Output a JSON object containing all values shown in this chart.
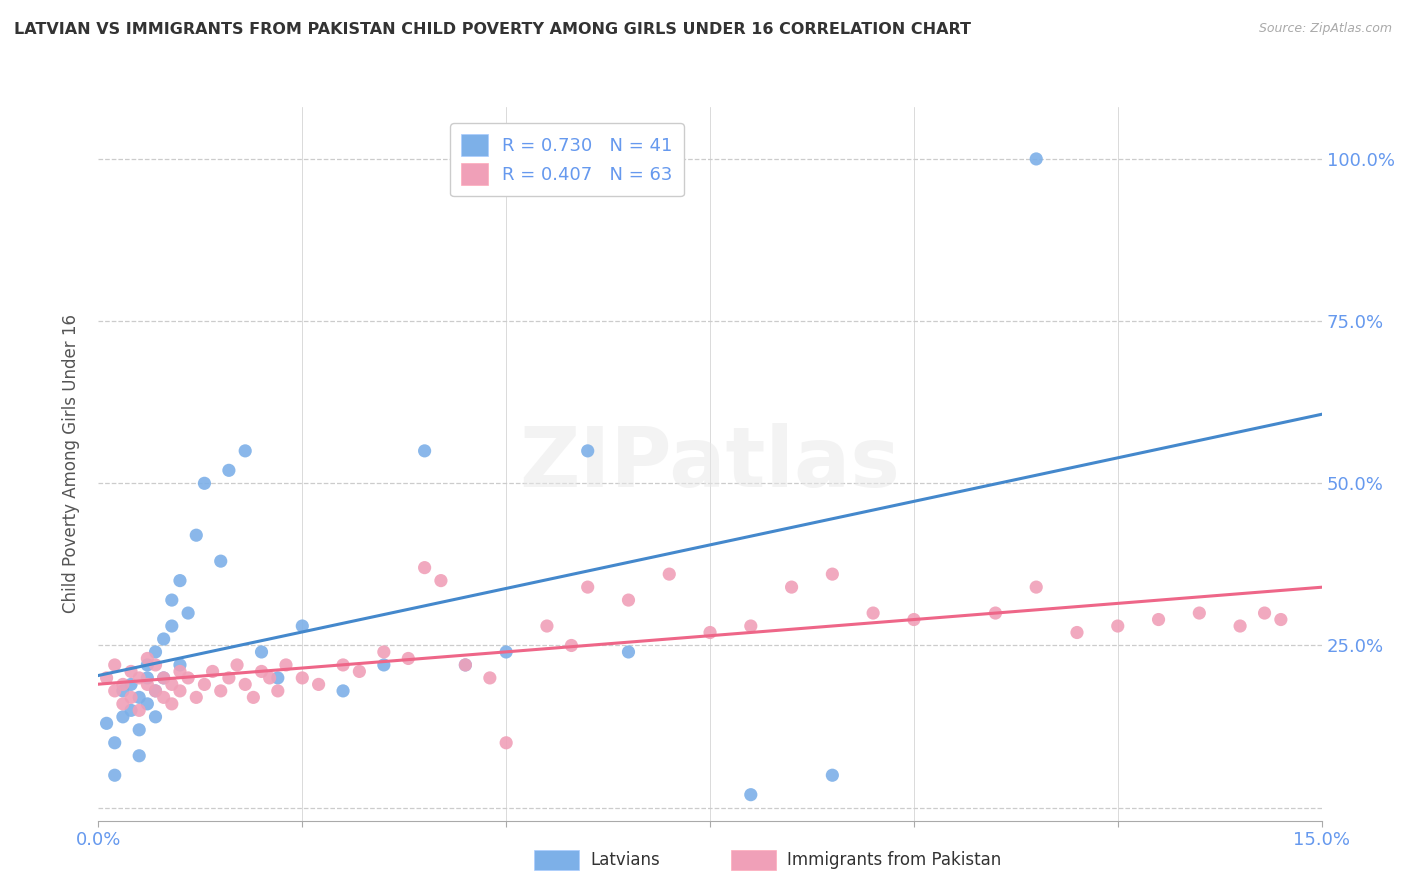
{
  "title": "LATVIAN VS IMMIGRANTS FROM PAKISTAN CHILD POVERTY AMONG GIRLS UNDER 16 CORRELATION CHART",
  "source": "Source: ZipAtlas.com",
  "ylabel": "Child Poverty Among Girls Under 16",
  "xlim": [
    0.0,
    0.15
  ],
  "ylim": [
    -0.02,
    1.08
  ],
  "yticks": [
    0.0,
    0.25,
    0.5,
    0.75,
    1.0
  ],
  "ytick_labels": [
    "",
    "25.0%",
    "50.0%",
    "75.0%",
    "100.0%"
  ],
  "xticks": [
    0.0,
    0.025,
    0.05,
    0.075,
    0.1,
    0.125,
    0.15
  ],
  "xtick_labels": [
    "0.0%",
    "",
    "",
    "",
    "",
    "",
    "15.0%"
  ],
  "latvian_R": 0.73,
  "latvian_N": 41,
  "pakistan_R": 0.407,
  "pakistan_N": 63,
  "latvian_color": "#7db0e8",
  "pakistan_color": "#f0a0b8",
  "trendline_latvian_color": "#4488cc",
  "trendline_pakistan_color": "#ee6688",
  "background_color": "#ffffff",
  "grid_color": "#cccccc",
  "watermark": "ZIPatlas",
  "latvian_x": [
    0.001,
    0.002,
    0.002,
    0.003,
    0.003,
    0.004,
    0.004,
    0.005,
    0.005,
    0.005,
    0.006,
    0.006,
    0.006,
    0.007,
    0.007,
    0.007,
    0.008,
    0.008,
    0.009,
    0.009,
    0.01,
    0.01,
    0.011,
    0.012,
    0.013,
    0.015,
    0.016,
    0.018,
    0.02,
    0.022,
    0.025,
    0.03,
    0.035,
    0.04,
    0.045,
    0.05,
    0.06,
    0.065,
    0.08,
    0.09,
    0.115
  ],
  "latvian_y": [
    0.13,
    0.05,
    0.1,
    0.14,
    0.18,
    0.15,
    0.19,
    0.17,
    0.12,
    0.08,
    0.2,
    0.16,
    0.22,
    0.18,
    0.14,
    0.24,
    0.2,
    0.26,
    0.28,
    0.32,
    0.35,
    0.22,
    0.3,
    0.42,
    0.5,
    0.38,
    0.52,
    0.55,
    0.24,
    0.2,
    0.28,
    0.18,
    0.22,
    0.55,
    0.22,
    0.24,
    0.55,
    0.24,
    0.02,
    0.05,
    1.0
  ],
  "pakistan_x": [
    0.001,
    0.002,
    0.002,
    0.003,
    0.003,
    0.004,
    0.004,
    0.005,
    0.005,
    0.006,
    0.006,
    0.007,
    0.007,
    0.008,
    0.008,
    0.009,
    0.009,
    0.01,
    0.01,
    0.011,
    0.012,
    0.013,
    0.014,
    0.015,
    0.016,
    0.017,
    0.018,
    0.019,
    0.02,
    0.021,
    0.022,
    0.023,
    0.025,
    0.027,
    0.03,
    0.032,
    0.035,
    0.038,
    0.04,
    0.042,
    0.045,
    0.048,
    0.05,
    0.055,
    0.058,
    0.06,
    0.065,
    0.07,
    0.075,
    0.08,
    0.085,
    0.09,
    0.095,
    0.1,
    0.11,
    0.115,
    0.12,
    0.125,
    0.13,
    0.135,
    0.14,
    0.143,
    0.145
  ],
  "pakistan_y": [
    0.2,
    0.18,
    0.22,
    0.19,
    0.16,
    0.21,
    0.17,
    0.2,
    0.15,
    0.19,
    0.23,
    0.18,
    0.22,
    0.17,
    0.2,
    0.19,
    0.16,
    0.21,
    0.18,
    0.2,
    0.17,
    0.19,
    0.21,
    0.18,
    0.2,
    0.22,
    0.19,
    0.17,
    0.21,
    0.2,
    0.18,
    0.22,
    0.2,
    0.19,
    0.22,
    0.21,
    0.24,
    0.23,
    0.37,
    0.35,
    0.22,
    0.2,
    0.1,
    0.28,
    0.25,
    0.34,
    0.32,
    0.36,
    0.27,
    0.28,
    0.34,
    0.36,
    0.3,
    0.29,
    0.3,
    0.34,
    0.27,
    0.28,
    0.29,
    0.3,
    0.28,
    0.3,
    0.29
  ]
}
